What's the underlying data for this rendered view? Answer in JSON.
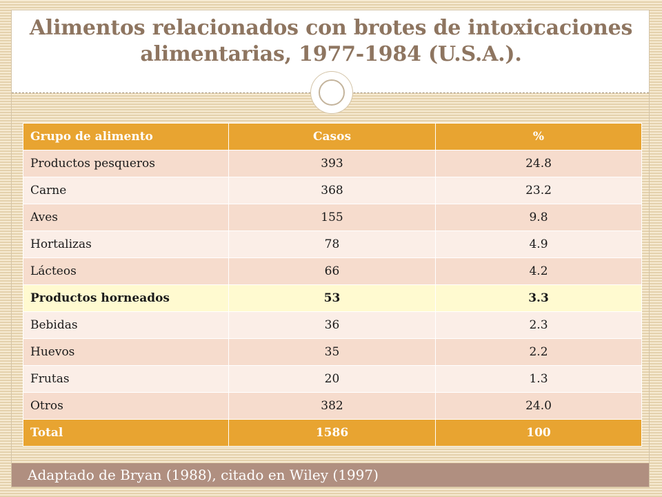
{
  "slide": {
    "title": "Alimentos relacionados con brotes de intoxicaciones alimentarias, 1977-1984 (U.S.A.).",
    "footer_note": "Adaptado de Bryan (1988), citado en Wiley (1997)"
  },
  "table": {
    "headers": [
      "Grupo de alimento",
      "Casos",
      "%"
    ],
    "rows": [
      {
        "group": "Productos pesqueros",
        "cases": "393",
        "percent": "24.8"
      },
      {
        "group": "Carne",
        "cases": "368",
        "percent": "23.2"
      },
      {
        "group": "Aves",
        "cases": "155",
        "percent": "9.8"
      },
      {
        "group": "Hortalizas",
        "cases": "78",
        "percent": "4.9"
      },
      {
        "group": "Lácteos",
        "cases": "66",
        "percent": "4.2"
      },
      {
        "group": "Productos horneados",
        "cases": "53",
        "percent": "3.3",
        "highlighted": true
      },
      {
        "group": "Bebidas",
        "cases": "36",
        "percent": "2.3"
      },
      {
        "group": "Huevos",
        "cases": "35",
        "percent": "2.2"
      },
      {
        "group": "Frutas",
        "cases": "20",
        "percent": "1.3"
      },
      {
        "group": "Otros",
        "cases": "382",
        "percent": "24.0"
      }
    ],
    "total": {
      "group": "Total",
      "cases": "1586",
      "percent": "100"
    }
  },
  "colors": {
    "header_orange": "#e8a431",
    "row_dark": "#f6dccd",
    "row_light": "#fbeee7",
    "highlight_row": "#fffad0",
    "title_brown": "#8e7560",
    "footer_bar": "#b08f80"
  }
}
